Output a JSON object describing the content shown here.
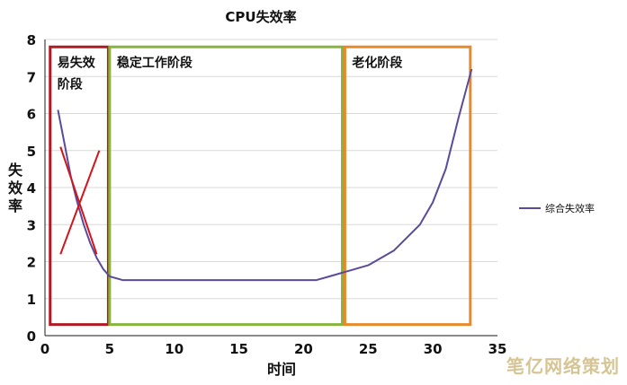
{
  "chart_data": {
    "type": "line",
    "title": "CPU失效率",
    "xlabel": "时间",
    "ylabel": "失效率",
    "xlim": [
      0,
      35
    ],
    "ylim": [
      0,
      8
    ],
    "x_ticks": [
      "0",
      "5",
      "10",
      "15",
      "20",
      "25",
      "30",
      "35"
    ],
    "y_ticks": [
      "0",
      "1",
      "2",
      "3",
      "4",
      "5",
      "6",
      "7",
      "8"
    ],
    "grid": "horizontal",
    "legend_position": "right",
    "series": [
      {
        "name": "综合失效率",
        "color": "#5b4a9b",
        "points": [
          [
            1,
            6.1
          ],
          [
            1.5,
            5.2
          ],
          [
            2,
            4.3
          ],
          [
            2.5,
            3.6
          ],
          [
            3,
            3.0
          ],
          [
            3.5,
            2.5
          ],
          [
            4,
            2.1
          ],
          [
            4.5,
            1.8
          ],
          [
            5,
            1.6
          ],
          [
            6,
            1.5
          ],
          [
            8,
            1.5
          ],
          [
            10,
            1.5
          ],
          [
            15,
            1.5
          ],
          [
            20,
            1.5
          ],
          [
            21,
            1.5
          ],
          [
            22,
            1.6
          ],
          [
            23.5,
            1.75
          ],
          [
            25,
            1.9
          ],
          [
            27,
            2.3
          ],
          [
            29,
            3.0
          ],
          [
            30,
            3.6
          ],
          [
            31,
            4.5
          ],
          [
            32,
            5.9
          ],
          [
            33,
            7.2
          ]
        ]
      }
    ],
    "regions": [
      {
        "label": "易失效阶段",
        "label_lines": [
          "易失效",
          "阶段"
        ],
        "x": [
          0.4,
          4.9
        ],
        "y": [
          0.3,
          7.8
        ],
        "color": "#b01a22"
      },
      {
        "label": "稳定工作阶段",
        "x": [
          5.0,
          23.0
        ],
        "y": [
          0.3,
          7.8
        ],
        "color": "#86b43c"
      },
      {
        "label": "老化阶段",
        "x": [
          23.2,
          32.9
        ],
        "y": [
          0.3,
          7.8
        ],
        "color": "#e8892a"
      }
    ],
    "cross_marks": [
      {
        "from": [
          1.2,
          2.2
        ],
        "to": [
          4.2,
          5.0
        ],
        "color": "#d0161c"
      },
      {
        "from": [
          1.2,
          5.1
        ],
        "to": [
          4.0,
          2.2
        ],
        "color": "#d0161c"
      }
    ]
  },
  "watermark": "笔亿网络策划"
}
